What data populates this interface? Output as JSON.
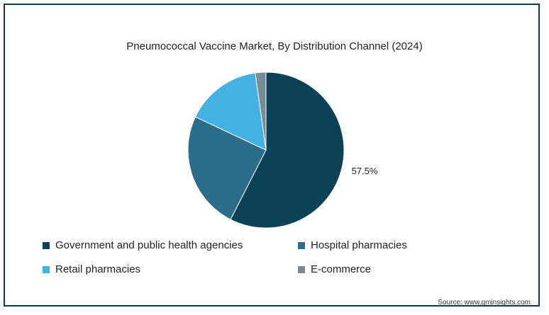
{
  "chart_data": {
    "type": "pie",
    "title": "Pneumococcal Vaccine Market, By Distribution Channel (2024)",
    "categories": [
      "Government and public health agencies",
      "Hospital pharmacies",
      "Retail pharmacies",
      "E-commerce"
    ],
    "values": [
      57.5,
      24.5,
      15.8,
      2.2
    ],
    "colors": [
      "#0b4258",
      "#2c6d8b",
      "#44b1e3",
      "#7a8b97"
    ],
    "data_labels": [
      "57.5%",
      "",
      "",
      ""
    ],
    "legend_position": "bottom"
  },
  "source": "Source: www.gminsights.com"
}
